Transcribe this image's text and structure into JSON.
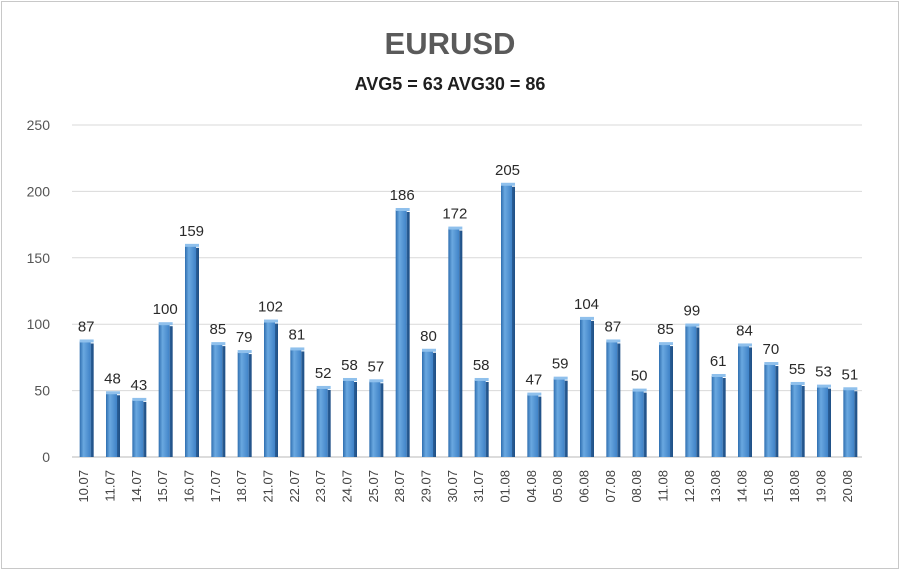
{
  "chart_data": {
    "type": "bar",
    "title": "EURUSD",
    "subtitle": "AVG5 = 63 AVG30 = 86",
    "xlabel": "",
    "ylabel": "",
    "ylim": [
      0,
      250
    ],
    "yticks": [
      0,
      50,
      100,
      150,
      200,
      250
    ],
    "grid": true,
    "legend": "none",
    "bar_color": "#5b9bd5",
    "categories": [
      "10.07",
      "11.07",
      "14.07",
      "15.07",
      "16.07",
      "17.07",
      "18.07",
      "21.07",
      "22.07",
      "23.07",
      "24.07",
      "25.07",
      "28.07",
      "29.07",
      "30.07",
      "31.07",
      "01.08",
      "04.08",
      "05.08",
      "06.08",
      "07.08",
      "08.08",
      "11.08",
      "12.08",
      "13.08",
      "14.08",
      "15.08",
      "18.08",
      "19.08",
      "20.08"
    ],
    "values": [
      87,
      48,
      43,
      100,
      159,
      85,
      79,
      102,
      81,
      52,
      58,
      57,
      186,
      80,
      172,
      58,
      205,
      47,
      59,
      104,
      87,
      50,
      85,
      99,
      61,
      84,
      70,
      55,
      53,
      51
    ]
  }
}
